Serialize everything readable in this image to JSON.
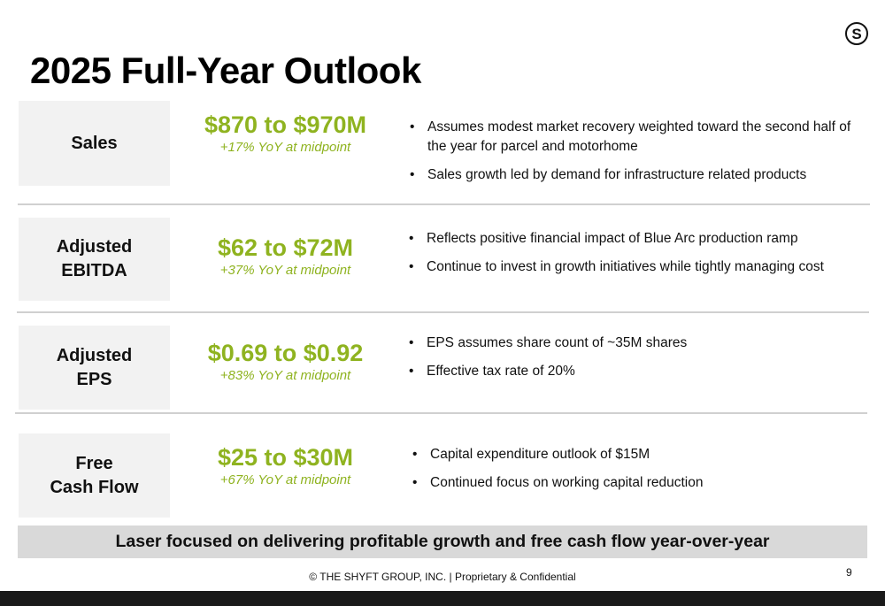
{
  "logo_letter": "S",
  "title": "2025 Full-Year Outlook",
  "rows": [
    {
      "label_lines": [
        "Sales"
      ],
      "range": "$870 to $970M",
      "yoy": "+17% YoY at midpoint",
      "bullets": [
        "Assumes modest market recovery weighted toward the second half of the year for parcel and motorhome",
        "Sales growth led by demand for infrastructure related products"
      ]
    },
    {
      "label_lines": [
        "Adjusted",
        "EBITDA"
      ],
      "range": "$62 to $72M",
      "yoy": "+37% YoY at midpoint",
      "bullets": [
        "Reflects positive financial impact of Blue Arc production ramp",
        "Continue to invest in growth initiatives while tightly managing cost"
      ]
    },
    {
      "label_lines": [
        "Adjusted",
        "EPS"
      ],
      "range": "$0.69 to $0.92",
      "yoy": "+83% YoY at midpoint",
      "bullets": [
        "EPS assumes share count of ~35M shares",
        "Effective tax rate of 20%"
      ]
    },
    {
      "label_lines": [
        "Free",
        "Cash Flow"
      ],
      "range": "$25 to $30M",
      "yoy": "+67% YoY at midpoint",
      "bullets": [
        "Capital expenditure outlook of $15M",
        "Continued focus on working capital reduction"
      ]
    }
  ],
  "banner": "Laser focused on delivering profitable growth and free cash flow year-over-year",
  "footer": "© THE SHYFT GROUP, INC. | Proprietary & Confidential",
  "page_number": "9",
  "colors": {
    "accent_green": "#8fb320",
    "label_bg": "#f2f2f2",
    "banner_bg": "#d9d9d9"
  }
}
